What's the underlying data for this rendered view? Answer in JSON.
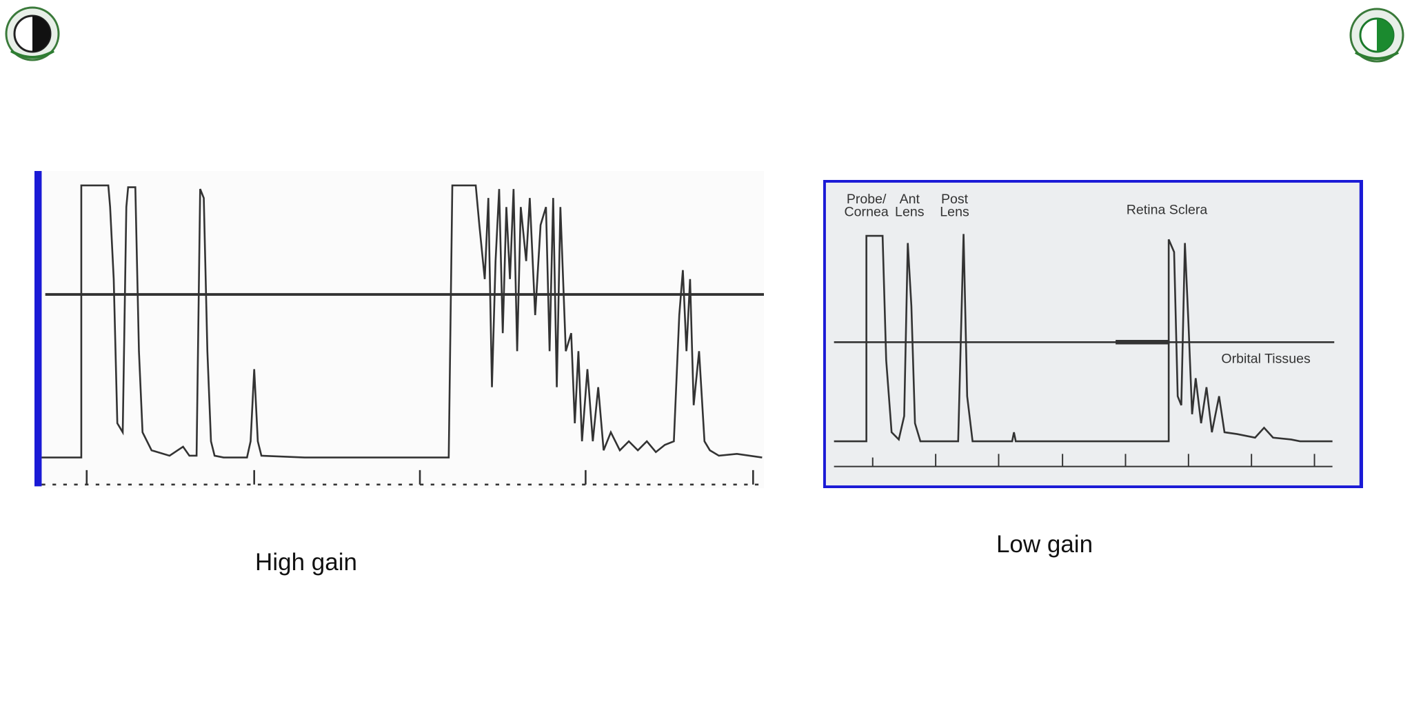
{
  "panels": [
    {
      "caption": "High gain"
    },
    {
      "caption": "Low gain",
      "labels": [
        {
          "lines": [
            "Probe/",
            "Cornea"
          ]
        },
        {
          "lines": [
            "Ant",
            "Lens"
          ]
        },
        {
          "lines": [
            "Post",
            "Lens"
          ]
        },
        {
          "lines": [
            "Retina Sclera"
          ]
        },
        {
          "lines": [
            "Orbital Tissues"
          ]
        }
      ]
    }
  ]
}
